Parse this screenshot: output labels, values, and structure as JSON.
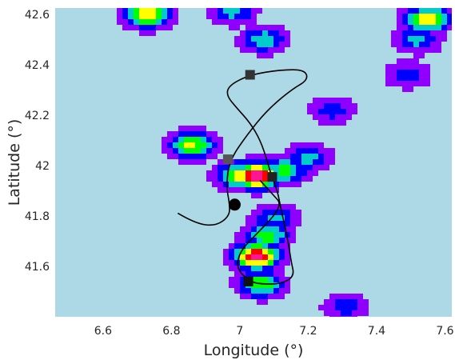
{
  "chart_data": {
    "type": "heatmap",
    "title": "",
    "xlabel": "Longitude (°)",
    "ylabel": "Latitude (°)",
    "xlim": [
      6.46,
      7.62
    ],
    "ylim": [
      41.4,
      42.625
    ],
    "xticks": [
      6.6,
      6.8,
      7.0,
      7.2,
      7.4,
      7.6
    ],
    "xtick_labels": [
      "6.6",
      "6.8",
      "7",
      "7.2",
      "7.4",
      "7.6"
    ],
    "yticks": [
      41.6,
      41.8,
      42.0,
      42.2,
      42.4,
      42.6
    ],
    "ytick_labels": [
      "41.6",
      "41.8",
      "42",
      "42.2",
      "42.4",
      "42.6"
    ],
    "grid": false,
    "background_color": "#add8e6",
    "colormap": [
      "#add8e6",
      "#8f00ff",
      "#0000ff",
      "#00cccc",
      "#00ff00",
      "#ffff00",
      "#ff0000",
      "#ff1493"
    ],
    "blobs": [
      {
        "lon": 7.05,
        "lat": 41.96,
        "peak": 1.0
      },
      {
        "lon": 7.0,
        "lat": 41.96,
        "peak": 0.7
      },
      {
        "lon": 7.13,
        "lat": 41.98,
        "peak": 0.55
      },
      {
        "lon": 7.2,
        "lat": 42.03,
        "peak": 0.4
      },
      {
        "lon": 7.05,
        "lat": 41.64,
        "peak": 0.95
      },
      {
        "lon": 7.08,
        "lat": 41.72,
        "peak": 0.55
      },
      {
        "lon": 7.06,
        "lat": 41.53,
        "peak": 0.6
      },
      {
        "lon": 7.1,
        "lat": 41.79,
        "peak": 0.4
      },
      {
        "lon": 6.86,
        "lat": 42.08,
        "peak": 0.65
      },
      {
        "lon": 6.73,
        "lat": 42.6,
        "peak": 0.75
      },
      {
        "lon": 6.98,
        "lat": 42.61,
        "peak": 0.4
      },
      {
        "lon": 7.07,
        "lat": 42.5,
        "peak": 0.45
      },
      {
        "lon": 7.55,
        "lat": 42.58,
        "peak": 0.7
      },
      {
        "lon": 7.52,
        "lat": 42.5,
        "peak": 0.4
      },
      {
        "lon": 7.27,
        "lat": 42.22,
        "peak": 0.3
      },
      {
        "lon": 7.49,
        "lat": 42.36,
        "peak": 0.3
      },
      {
        "lon": 7.31,
        "lat": 41.44,
        "peak": 0.3
      }
    ],
    "series": [
      {
        "type": "line",
        "color": "#000000",
        "points": [
          [
            6.82,
            41.81
          ],
          [
            6.87,
            41.77
          ],
          [
            6.93,
            41.76
          ],
          [
            6.97,
            41.8
          ],
          [
            6.97,
            41.85
          ],
          [
            6.96,
            41.92
          ],
          [
            6.97,
            42.02
          ],
          [
            7.02,
            42.12
          ],
          [
            7.08,
            42.22
          ],
          [
            7.15,
            42.3
          ],
          [
            7.2,
            42.34
          ],
          [
            7.19,
            42.38
          ],
          [
            7.12,
            42.38
          ],
          [
            7.03,
            42.36
          ],
          [
            6.97,
            42.32
          ],
          [
            6.96,
            42.28
          ],
          [
            6.99,
            42.23
          ],
          [
            7.03,
            42.17
          ],
          [
            7.06,
            42.1
          ],
          [
            7.08,
            42.02
          ],
          [
            7.09,
            41.97
          ],
          [
            7.11,
            41.9
          ],
          [
            7.12,
            41.83
          ],
          [
            7.14,
            41.71
          ],
          [
            7.15,
            41.62
          ],
          [
            7.16,
            41.56
          ],
          [
            7.12,
            41.53
          ],
          [
            7.06,
            41.53
          ],
          [
            7.03,
            41.54
          ],
          [
            6.99,
            41.59
          ],
          [
            7.0,
            41.66
          ],
          [
            7.05,
            41.73
          ],
          [
            7.1,
            41.8
          ],
          [
            7.12,
            41.85
          ],
          [
            7.1,
            41.88
          ],
          [
            7.08,
            41.91
          ],
          [
            7.06,
            41.94
          ]
        ]
      }
    ],
    "markers": [
      {
        "lon": 7.03,
        "lat": 42.36,
        "shape": "square",
        "color": "#333333"
      },
      {
        "lon": 6.965,
        "lat": 42.025,
        "shape": "square",
        "color": "#555555"
      },
      {
        "lon": 7.095,
        "lat": 41.955,
        "shape": "square",
        "color": "#222222"
      },
      {
        "lon": 7.025,
        "lat": 41.54,
        "shape": "square",
        "color": "#111111"
      },
      {
        "lon": 6.985,
        "lat": 41.845,
        "shape": "circle",
        "color": "#000000"
      }
    ]
  }
}
